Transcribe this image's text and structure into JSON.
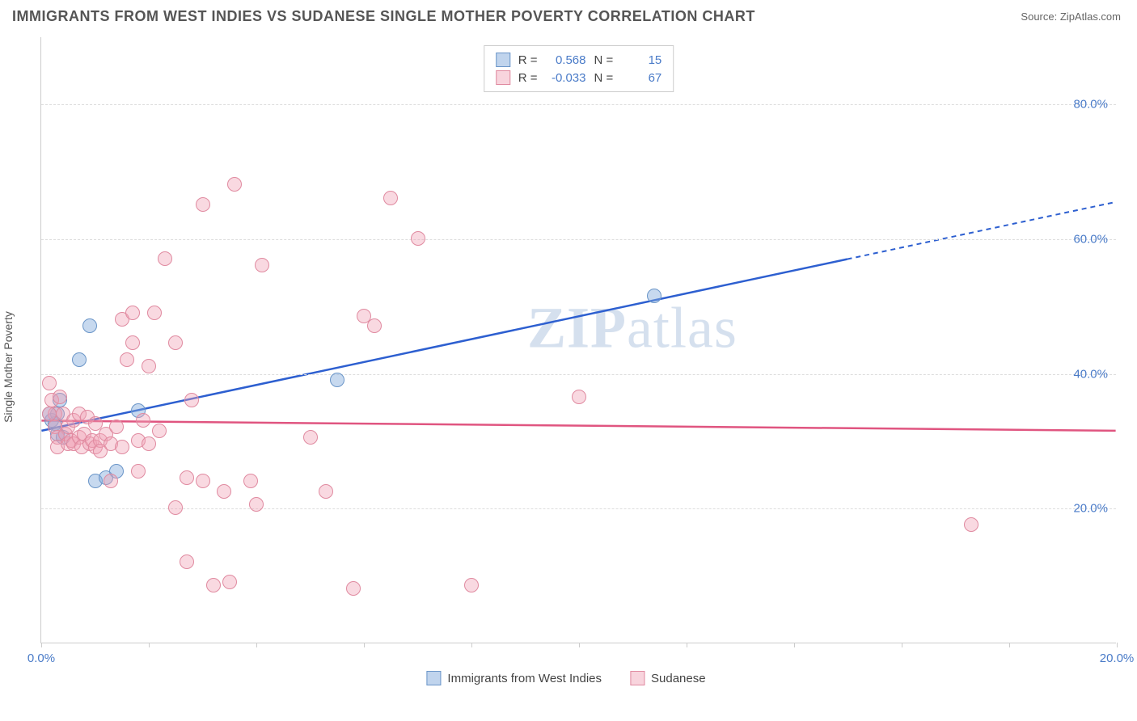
{
  "title": "IMMIGRANTS FROM WEST INDIES VS SUDANESE SINGLE MOTHER POVERTY CORRELATION CHART",
  "source_label": "Source:",
  "source_name": "ZipAtlas.com",
  "y_axis_label": "Single Mother Poverty",
  "watermark_zip": "ZIP",
  "watermark_atlas": "atlas",
  "chart": {
    "type": "scatter",
    "xlim": [
      0,
      20
    ],
    "ylim": [
      0,
      90
    ],
    "y_ticks": [
      20,
      40,
      60,
      80
    ],
    "y_tick_labels": [
      "20.0%",
      "40.0%",
      "60.0%",
      "80.0%"
    ],
    "x_tick_positions": [
      0,
      2,
      4,
      6,
      8,
      10,
      12,
      14,
      16,
      18,
      20
    ],
    "x_tick_labels_show": {
      "0": "0.0%",
      "20": "20.0%"
    },
    "background_color": "#ffffff",
    "grid_color": "#dddddd",
    "axis_color": "#cccccc",
    "label_color": "#4a7bc8",
    "series": [
      {
        "name": "Immigrants from West Indies",
        "color_fill": "rgba(130,170,220,0.45)",
        "color_stroke": "#6a95c8",
        "trend_color": "#2d5fd0",
        "R": "0.568",
        "N": "15",
        "trend": {
          "x1": 0,
          "y1": 31.5,
          "x2": 15,
          "y2": 57,
          "x2_ext": 20,
          "y2_ext": 65.5
        },
        "points": [
          [
            0.2,
            33
          ],
          [
            0.25,
            32.5
          ],
          [
            0.3,
            34
          ],
          [
            0.3,
            31
          ],
          [
            0.4,
            30.5
          ],
          [
            0.9,
            47
          ],
          [
            0.7,
            42
          ],
          [
            1.0,
            24
          ],
          [
            1.2,
            24.5
          ],
          [
            1.4,
            25.5
          ],
          [
            1.8,
            34.5
          ],
          [
            0.35,
            36
          ],
          [
            5.5,
            39
          ],
          [
            11.4,
            51.5
          ],
          [
            0.15,
            34
          ]
        ]
      },
      {
        "name": "Sudanese",
        "color_fill": "rgba(240,160,180,0.4)",
        "color_stroke": "#e08aa0",
        "trend_color": "#e05580",
        "R": "-0.033",
        "N": "67",
        "trend": {
          "x1": 0,
          "y1": 33,
          "x2": 20,
          "y2": 31.5
        },
        "points": [
          [
            0.15,
            38.5
          ],
          [
            0.2,
            36
          ],
          [
            0.25,
            34
          ],
          [
            0.25,
            32
          ],
          [
            0.3,
            30.5
          ],
          [
            0.3,
            29
          ],
          [
            0.35,
            36.5
          ],
          [
            0.4,
            34
          ],
          [
            0.45,
            31
          ],
          [
            0.5,
            29.5
          ],
          [
            0.5,
            32
          ],
          [
            0.55,
            30
          ],
          [
            0.6,
            33
          ],
          [
            0.6,
            29.5
          ],
          [
            0.7,
            30.5
          ],
          [
            0.7,
            34
          ],
          [
            0.75,
            29
          ],
          [
            0.8,
            31
          ],
          [
            0.85,
            33.5
          ],
          [
            0.9,
            29.5
          ],
          [
            0.95,
            30
          ],
          [
            1.0,
            32.5
          ],
          [
            1.0,
            29
          ],
          [
            1.1,
            30
          ],
          [
            1.1,
            28.5
          ],
          [
            1.2,
            31
          ],
          [
            1.3,
            29.5
          ],
          [
            1.3,
            24
          ],
          [
            1.4,
            32
          ],
          [
            1.5,
            29
          ],
          [
            1.5,
            48
          ],
          [
            1.6,
            42
          ],
          [
            1.7,
            44.5
          ],
          [
            1.7,
            49
          ],
          [
            1.8,
            30
          ],
          [
            1.8,
            25.5
          ],
          [
            1.9,
            33
          ],
          [
            2.0,
            29.5
          ],
          [
            2.0,
            41
          ],
          [
            2.1,
            49
          ],
          [
            2.2,
            31.5
          ],
          [
            2.3,
            57
          ],
          [
            2.5,
            20
          ],
          [
            2.5,
            44.5
          ],
          [
            2.7,
            24.5
          ],
          [
            2.7,
            12
          ],
          [
            2.8,
            36
          ],
          [
            3.0,
            24
          ],
          [
            3.0,
            65
          ],
          [
            3.2,
            8.5
          ],
          [
            3.4,
            22.5
          ],
          [
            3.5,
            9
          ],
          [
            3.6,
            68
          ],
          [
            3.9,
            24
          ],
          [
            4.0,
            20.5
          ],
          [
            4.1,
            56
          ],
          [
            5.0,
            30.5
          ],
          [
            5.3,
            22.5
          ],
          [
            5.8,
            8
          ],
          [
            6.0,
            48.5
          ],
          [
            6.2,
            47
          ],
          [
            6.5,
            66
          ],
          [
            7.0,
            60
          ],
          [
            8.0,
            8.5
          ],
          [
            10.0,
            36.5
          ],
          [
            17.3,
            17.5
          ],
          [
            0.15,
            34
          ]
        ]
      }
    ]
  },
  "stats_box": {
    "r_label": "R =",
    "n_label": "N ="
  },
  "legend": {
    "series1": "Immigrants from West Indies",
    "series2": "Sudanese"
  }
}
